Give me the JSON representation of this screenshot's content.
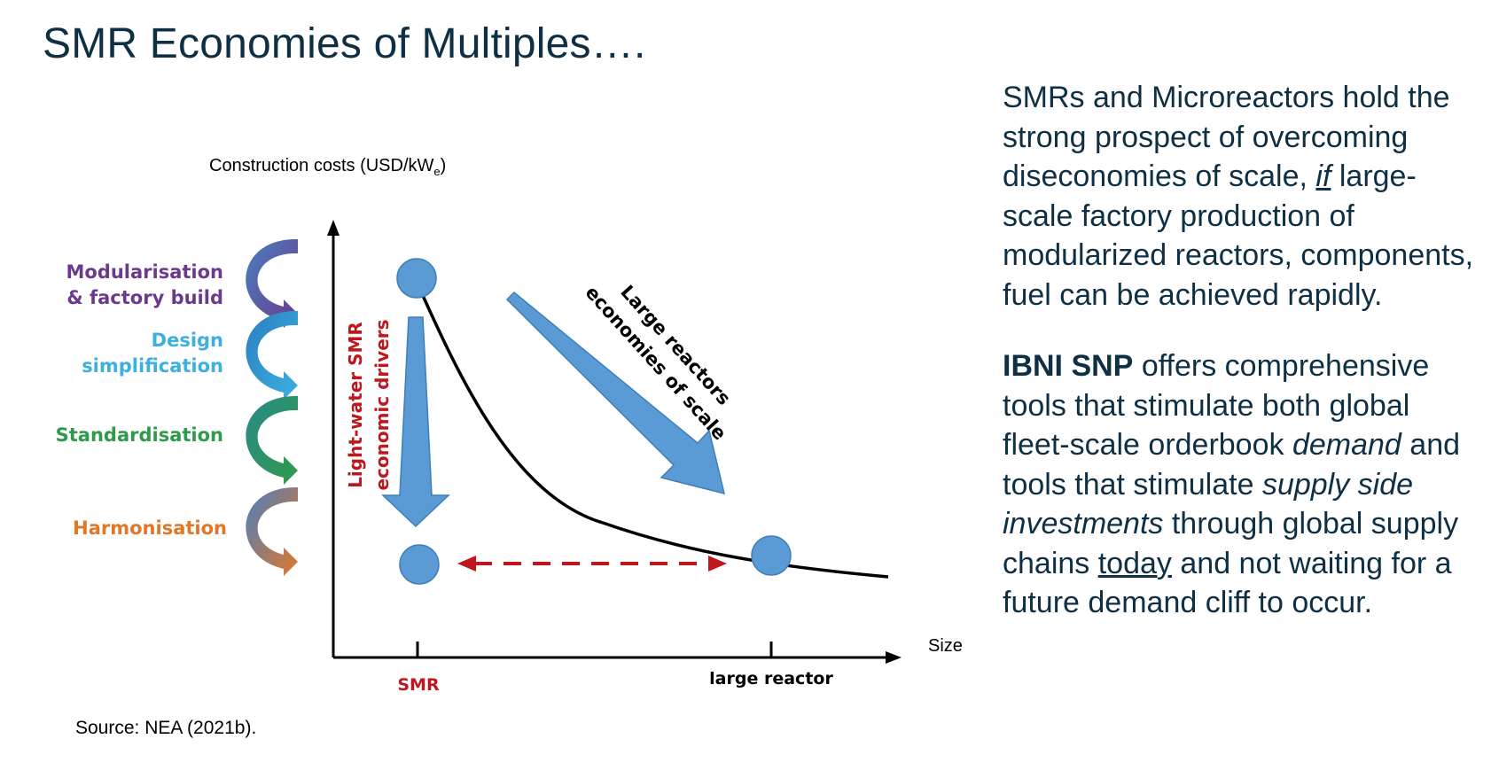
{
  "page": {
    "title": "SMR Economies of Multiples….",
    "source": "Source: NEA (2021b)."
  },
  "diagram": {
    "y_axis_label": "Construction costs (USD/kW",
    "y_axis_label_sub": "e",
    "y_axis_label_close": ")",
    "x_axis_label": "Size",
    "x_tick_smr": "SMR",
    "x_tick_large": "large reactor",
    "drivers": [
      {
        "line1": "Modularisation",
        "line2": "& factory build",
        "color": "#6b3a8c"
      },
      {
        "line1": "Design",
        "line2": "simplification",
        "color": "#3db0e0"
      },
      {
        "line1": "Standardisation",
        "line2": "",
        "color": "#2f9a4a"
      },
      {
        "line1": "Harmonisation",
        "line2": "",
        "color": "#e0782a"
      }
    ],
    "smr_drivers_line1": "Light-water SMR",
    "smr_drivers_line2": "economic drivers",
    "large_scale_line1": "Large reactors",
    "large_scale_line2": "economies of scale",
    "colors": {
      "circle": "#5b9bd5",
      "arrow_fill": "#5b9bd5",
      "dashed": "#c0161e",
      "smr_label": "#c0161e"
    }
  },
  "text": {
    "p1": "SMRs and Microreactors hold the strong prospect of overcoming diseconomies of scale,",
    "p1_if": "if",
    "p1_rest": "large-scale factory production of modularized reactors, components, fuel can be achieved rapidly.",
    "p2_bold": "IBNI SNP",
    "p2_a": "offers comprehensive tools that stimulate both global fleet-scale orderbook",
    "p2_demand": "demand",
    "p2_b": "and tools that stimulate",
    "p2_supply": "supply side investments",
    "p2_c": "through global supply chains",
    "p2_today": "today",
    "p2_d": "and not waiting for a future demand cliff to occur."
  }
}
